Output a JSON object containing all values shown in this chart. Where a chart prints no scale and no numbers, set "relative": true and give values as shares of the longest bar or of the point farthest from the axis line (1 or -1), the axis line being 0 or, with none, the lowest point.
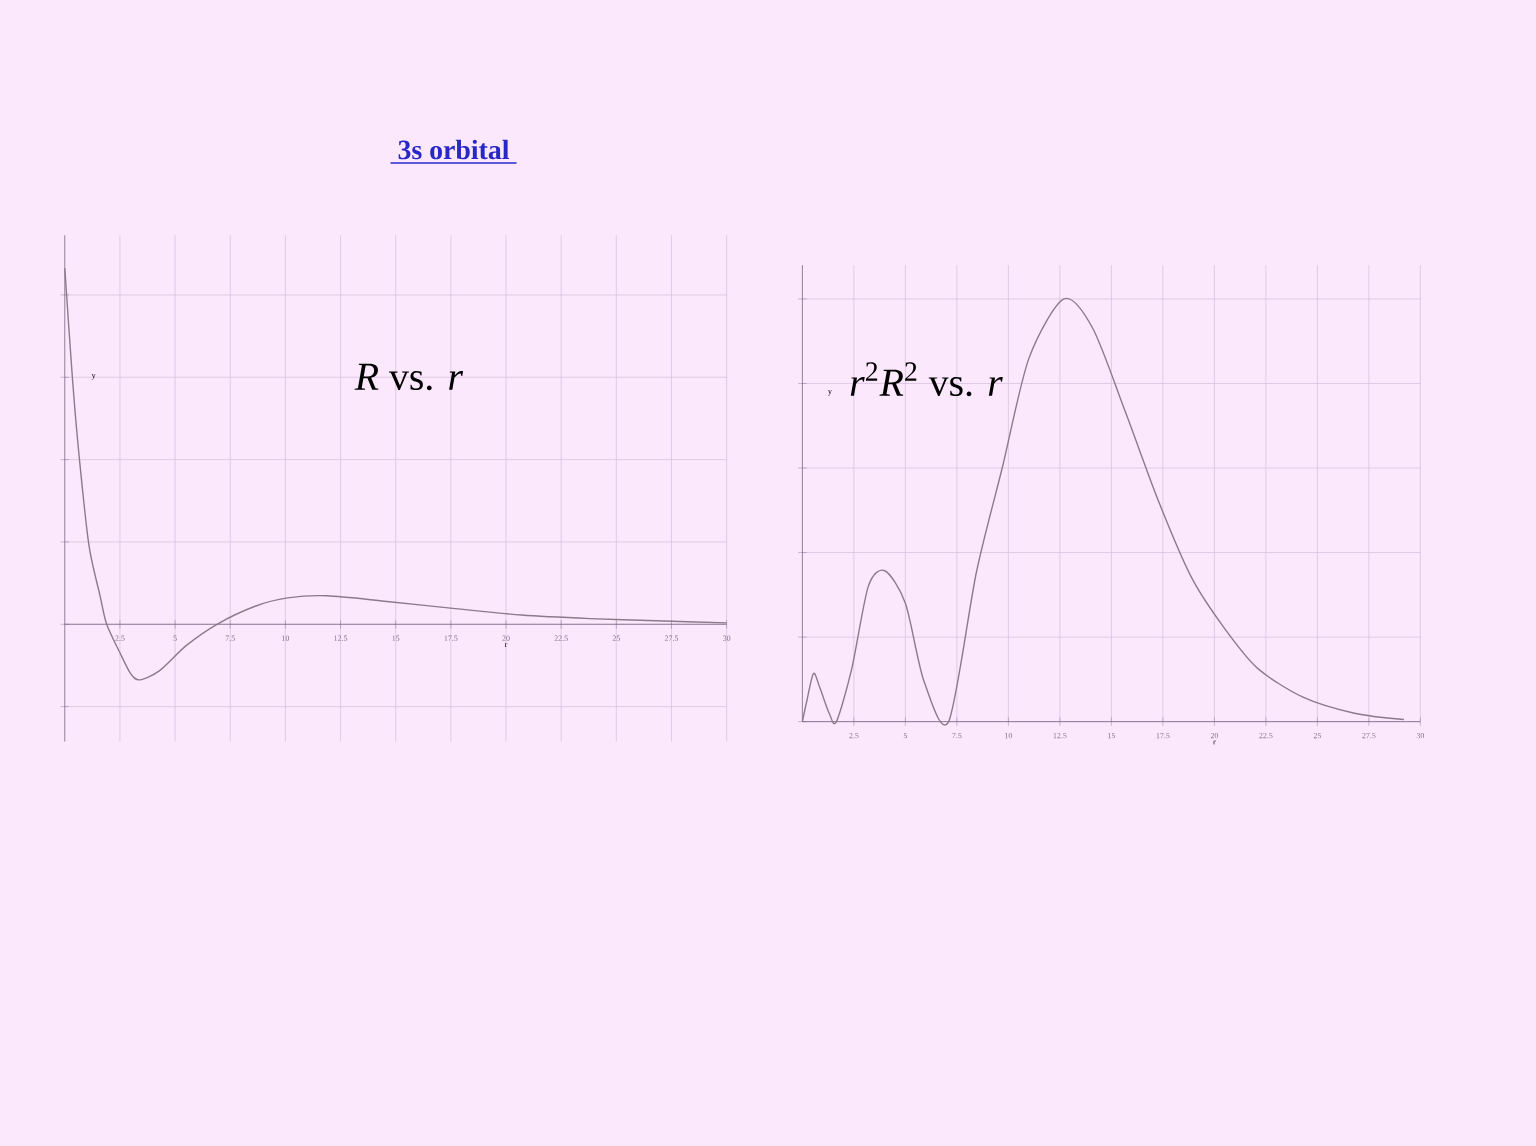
{
  "chart_data": [
    {
      "type": "line",
      "title": "3s orbital",
      "xlabel": "r",
      "ylabel": "y",
      "relative": true,
      "grid": true,
      "tick_labels": "x",
      "marker": "none",
      "line_style": "solid",
      "xlim": [
        0,
        30
      ],
      "xticks": [
        2.5,
        5,
        7.5,
        10,
        12.5,
        15,
        17.5,
        20,
        22.5,
        25,
        27.5,
        30
      ],
      "annotations": [
        "*R* vs. *r*"
      ],
      "series": [
        {
          "color": "#8a7a8a",
          "x": [
            0,
            0.36,
            0.67,
            1.1,
            1.6,
            1.9,
            2.5,
            3.0,
            3.4,
            4.3,
            5.5,
            6.9,
            8.6,
            10.1,
            11.9,
            14.6,
            17.7,
            20.7,
            23.8,
            26.8,
            30
          ],
          "values": [
            1.0,
            0.68,
            0.46,
            0.22,
            0.08,
            0,
            -0.08,
            -0.14,
            -0.156,
            -0.13,
            -0.06,
            0,
            0.05,
            0.074,
            0.08,
            0.064,
            0.044,
            0.026,
            0.016,
            0.01,
            0.004
          ]
        }
      ]
    },
    {
      "type": "line",
      "xlabel": "r",
      "ylabel": "y",
      "relative": true,
      "grid": true,
      "tick_labels": "x",
      "marker": "none",
      "line_style": "solid",
      "xlim": [
        0,
        30
      ],
      "xticks": [
        2.5,
        5,
        7.5,
        10,
        12.5,
        15,
        17.5,
        20,
        22.5,
        25,
        27.5,
        30
      ],
      "annotations": [
        "*r*$^{2}$*R*$^{2}$ vs. *r*"
      ],
      "series": [
        {
          "color": "#8a7a8a",
          "x": [
            0,
            0.22,
            0.54,
            0.85,
            1.3,
            1.65,
            2.4,
            3.2,
            4.0,
            5.0,
            5.9,
            7.1,
            8.45,
            9.7,
            11.0,
            12.7,
            14.1,
            15.7,
            17.3,
            18.9,
            20.5,
            22.1,
            24.3,
            26.8,
            29.2
          ],
          "values": [
            0,
            0.05,
            0.114,
            0.08,
            0.02,
            0,
            0.126,
            0.32,
            0.357,
            0.28,
            0.096,
            0,
            0.354,
            0.6,
            0.86,
            1.0,
            0.93,
            0.73,
            0.52,
            0.34,
            0.22,
            0.126,
            0.058,
            0.02,
            0.005
          ]
        }
      ]
    }
  ]
}
